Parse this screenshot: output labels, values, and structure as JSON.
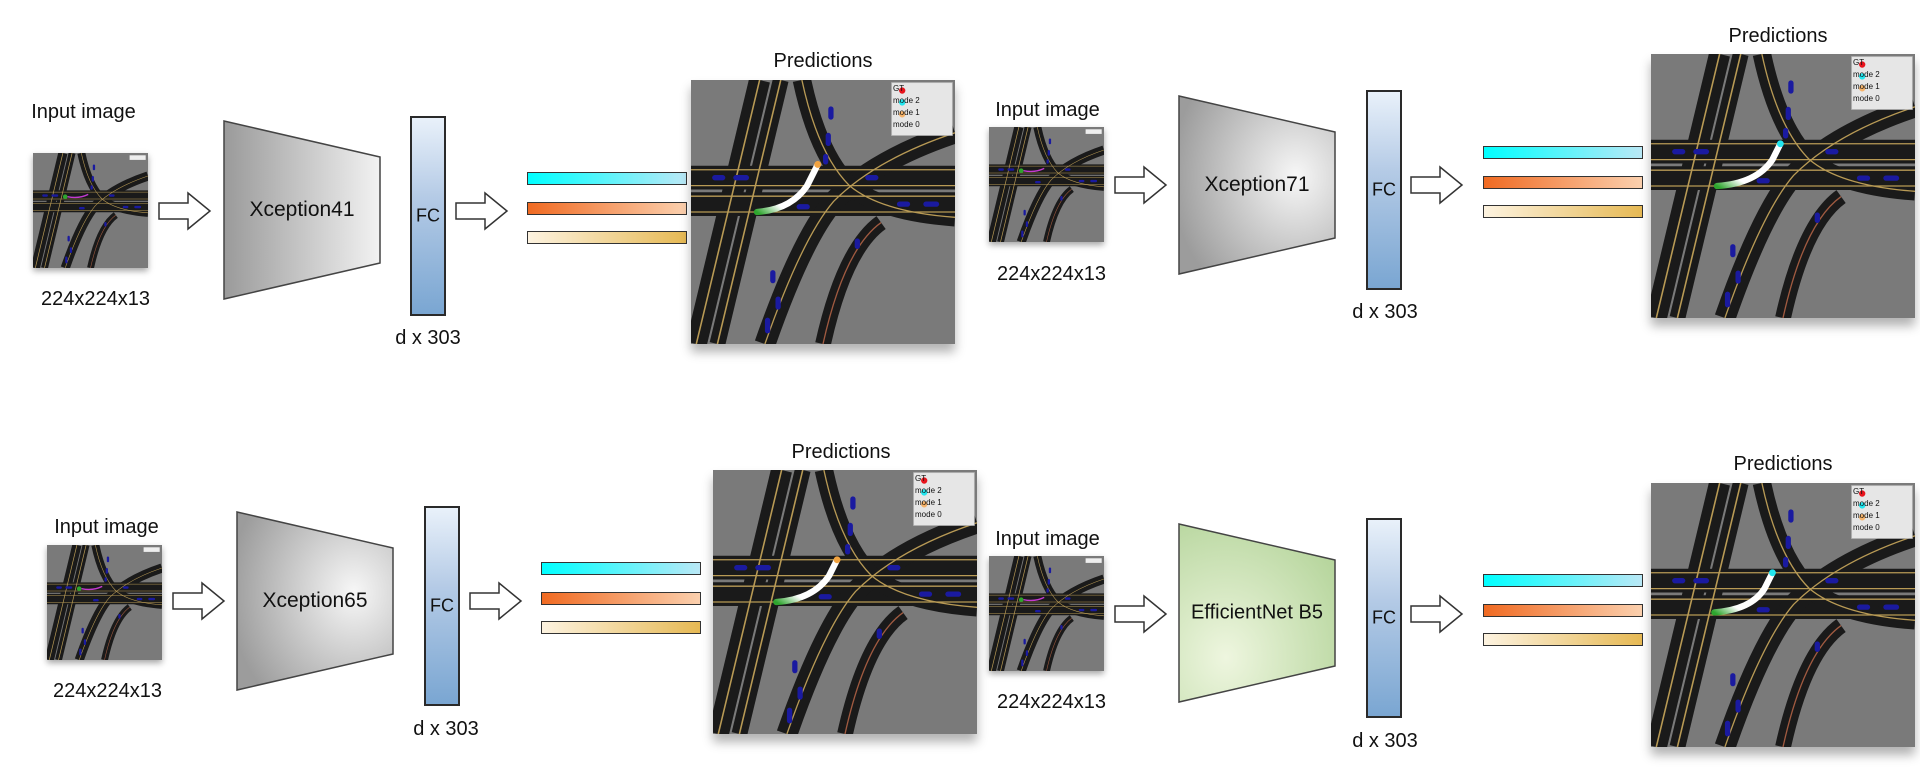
{
  "figure": {
    "pipelines": [
      {
        "input_label": "Input image",
        "input_dims": "224x224x13",
        "backbone": "Xception41",
        "fc_label": "FC",
        "fc_dims": "d x 303",
        "predictions_label": "Predictions",
        "legend": [
          "GT",
          "mode 2",
          "mode 1",
          "mode 0"
        ],
        "backbone_fill": "gray"
      },
      {
        "input_label": "Input image",
        "input_dims": "224x224x13",
        "backbone": "Xception71",
        "fc_label": "FC",
        "fc_dims": "d x 303",
        "predictions_label": "Predictions",
        "legend": [
          "GT",
          "mode 2",
          "mode 1",
          "mode 0"
        ],
        "backbone_fill": "gray"
      },
      {
        "input_label": "Input image",
        "input_dims": "224x224x13",
        "backbone": "Xception65",
        "fc_label": "FC",
        "fc_dims": "d x 303",
        "predictions_label": "Predictions",
        "legend": [
          "GT",
          "mode 2",
          "mode 1",
          "mode 0"
        ],
        "backbone_fill": "gray"
      },
      {
        "input_label": "Input image",
        "input_dims": "224x224x13",
        "backbone": "EfficientNet B5",
        "fc_label": "FC",
        "fc_dims": "d x 303",
        "predictions_label": "Predictions",
        "legend": [
          "GT",
          "mode 2",
          "mode 1",
          "mode 0"
        ],
        "backbone_fill": "green"
      }
    ],
    "mode_colors": {
      "gt": "#e8141c",
      "mode2": "#22e6ef",
      "mode1": "#f6b36a",
      "mode0": "#e8dfb6"
    },
    "output_bar_colors": [
      "#00ffff",
      "#f06a22",
      "#e6b954"
    ]
  }
}
